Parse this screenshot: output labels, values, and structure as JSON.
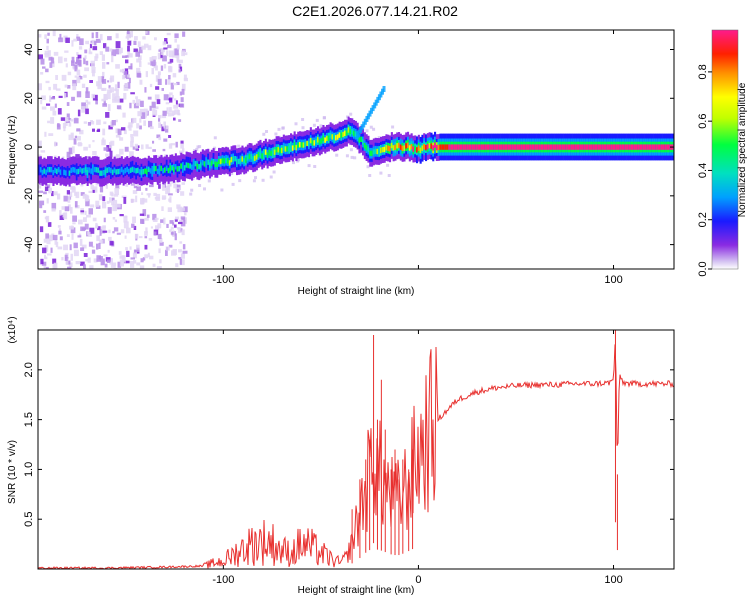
{
  "title": "C2E1.2026.077.14.21.R02",
  "chart_data": [
    {
      "type": "heatmap",
      "name": "spectrogram",
      "xlabel": "Height of straight line (km)",
      "ylabel": "Frequency (Hz)",
      "xlim": [
        -195,
        131
      ],
      "ylim": [
        -50,
        48
      ],
      "xticks": [
        -100,
        0,
        100
      ],
      "xtick_labels": [
        "-100",
        "",
        "100"
      ],
      "yticks": [
        -40,
        -20,
        0,
        20,
        40
      ],
      "ytick_labels": [
        "-40",
        "-20",
        "0",
        "20",
        "40"
      ],
      "ridge_x": [
        -195,
        -170,
        -150,
        -130,
        -110,
        -100,
        -90,
        -80,
        -70,
        -60,
        -50,
        -40,
        -35,
        -30,
        -25,
        -20,
        -15,
        -10,
        -5,
        0,
        5,
        10,
        15,
        20,
        40,
        60,
        80,
        100,
        131
      ],
      "ridge_y": [
        -10,
        -10,
        -10,
        -9,
        -7,
        -6,
        -5,
        -3,
        -1,
        1,
        3,
        5,
        7,
        3,
        -2,
        -1,
        0,
        0,
        0,
        -1,
        0,
        0,
        0,
        0,
        0,
        0,
        0,
        0,
        0
      ],
      "ridge_amp": [
        0.25,
        0.3,
        0.3,
        0.35,
        0.35,
        0.45,
        0.45,
        0.5,
        0.5,
        0.5,
        0.5,
        0.55,
        0.5,
        0.4,
        0.4,
        0.5,
        0.6,
        0.7,
        0.75,
        0.7,
        0.8,
        0.85,
        0.9,
        0.92,
        0.92,
        0.92,
        0.92,
        0.92,
        0.92
      ],
      "noise_x_range": [
        -195,
        -120
      ]
    },
    {
      "type": "colorbar",
      "name": "amplitude-scale",
      "label": "Normalized spectral amplitude",
      "range": [
        0,
        0.97
      ],
      "ticks": [
        0.0,
        0.2,
        0.4,
        0.6,
        0.8
      ],
      "tick_labels": [
        "0.0",
        "0.2",
        "0.4",
        "0.6",
        "0.8"
      ]
    },
    {
      "type": "line",
      "name": "snr",
      "xlabel": "Height of straight line (km)",
      "ylabel": "SNR (10 * v/v)",
      "scale_label": "(x10⁴)",
      "xlim": [
        -195,
        131
      ],
      "ylim": [
        0,
        2.4
      ],
      "xticks": [
        -100,
        0,
        100
      ],
      "xtick_labels": [
        "-100",
        "0",
        "100"
      ],
      "yticks": [
        0.5,
        1.0,
        1.5,
        2.0
      ],
      "ytick_labels": [
        "0.5",
        "1.0",
        "1.5",
        "2.0"
      ],
      "color": "#e8312f",
      "series": [
        {
          "name": "SNR",
          "x": [
            -195,
            -160,
            -130,
            -110,
            -105,
            -100,
            -95,
            -90,
            -85,
            -80,
            -75,
            -70,
            -65,
            -60,
            -55,
            -50,
            -45,
            -40,
            -36,
            -33,
            -30,
            -28,
            -25,
            -23,
            -22,
            -20,
            -18,
            -15,
            -12,
            -10,
            -7,
            -5,
            -2,
            0,
            5,
            10,
            15,
            20,
            30,
            40,
            50,
            60,
            70,
            80,
            90,
            98,
            100,
            101,
            102,
            103,
            105,
            110,
            120,
            131
          ],
          "y": [
            0.01,
            0.01,
            0.02,
            0.03,
            0.06,
            0.08,
            0.14,
            0.2,
            0.25,
            0.28,
            0.26,
            0.18,
            0.16,
            0.25,
            0.22,
            0.16,
            0.1,
            0.06,
            0.15,
            0.35,
            0.55,
            0.75,
            0.95,
            1.3,
            1.0,
            0.95,
            0.9,
            0.75,
            0.7,
            0.7,
            0.8,
            0.9,
            1.05,
            1.15,
            1.35,
            1.5,
            1.6,
            1.7,
            1.78,
            1.82,
            1.84,
            1.85,
            1.85,
            1.86,
            1.86,
            1.87,
            1.9,
            2.35,
            0.95,
            1.95,
            1.87,
            1.86,
            1.86,
            1.86
          ],
          "spike_x": [
            -34,
            -30,
            -27,
            -25,
            -23,
            -21,
            -19,
            -17,
            -14,
            -12,
            -10,
            -8,
            -5,
            -3,
            101,
            102
          ],
          "spike_y": [
            0.6,
            0.9,
            1.1,
            1.3,
            2.35,
            1.5,
            1.9,
            1.4,
            1.0,
            1.2,
            0.9,
            1.1,
            1.0,
            1.2,
            2.4,
            0.95
          ]
        }
      ]
    }
  ]
}
